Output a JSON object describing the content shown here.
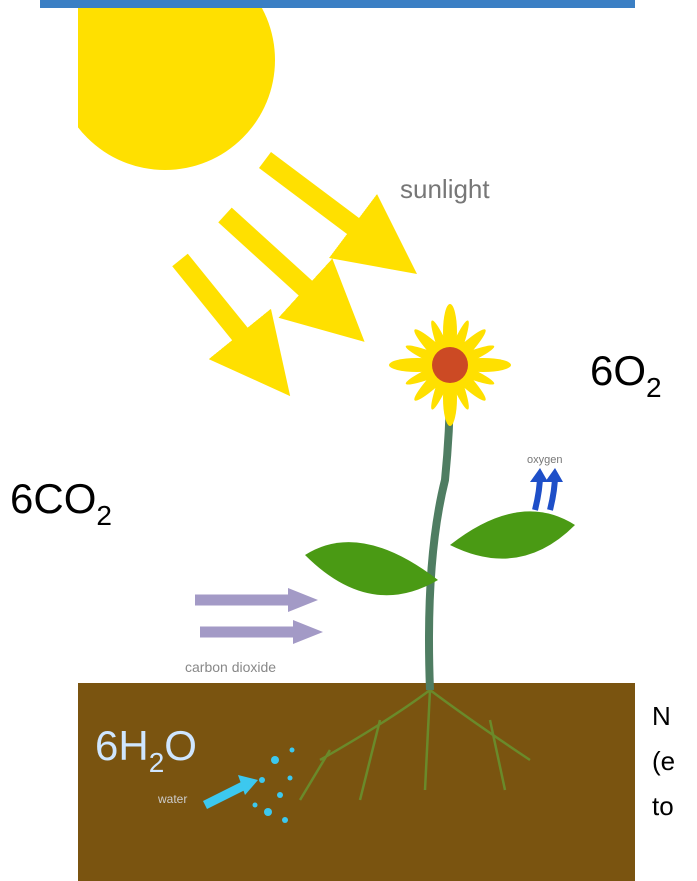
{
  "labels": {
    "sunlight": "sunlight",
    "oxygen": "oxygen",
    "carbon_dioxide": "carbon dioxide",
    "water": "water"
  },
  "formulas": {
    "oxygen": {
      "main": "6O",
      "sub": "2"
    },
    "carbon_dioxide": {
      "main": "6CO",
      "sub": "2"
    },
    "water": {
      "main": "6H",
      "sub": "2",
      "tail": "O"
    }
  },
  "side_note_lines": [
    "N",
    "(e",
    "to"
  ]
}
